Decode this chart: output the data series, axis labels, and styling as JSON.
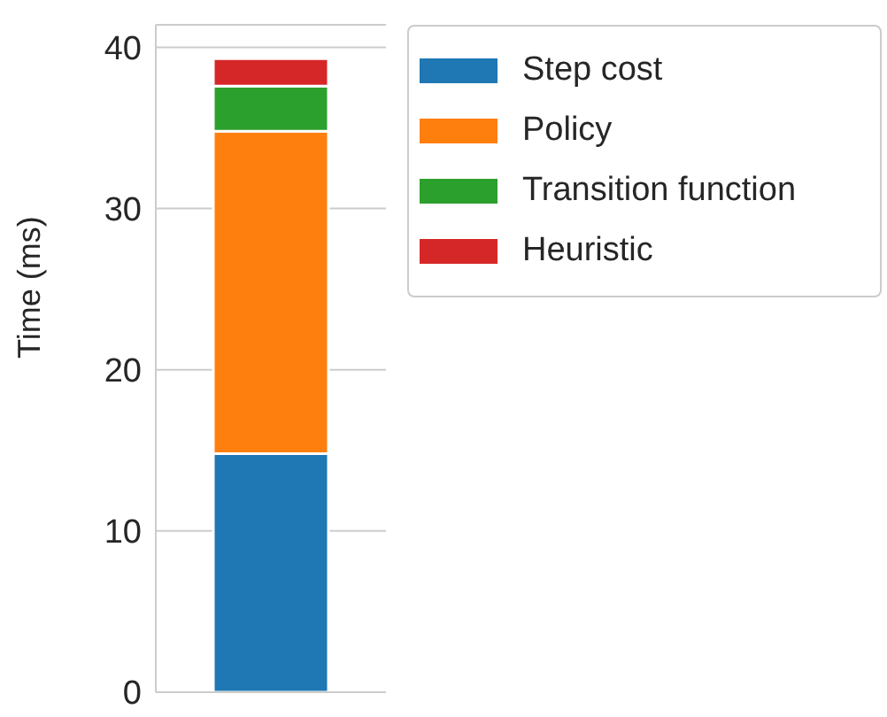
{
  "chart_data": {
    "type": "bar",
    "stacked": true,
    "categories": [
      null
    ],
    "ylabel": "Time (ms)",
    "ylim": [
      0,
      41.4
    ],
    "yticks": [
      0,
      10,
      20,
      30,
      40
    ],
    "grid": "y",
    "legend": "top right",
    "series": [
      {
        "name": "Step cost",
        "color": "#1f77b4",
        "values": [
          14.8
        ]
      },
      {
        "name": "Policy",
        "color": "#ff7f0e",
        "values": [
          20.0
        ]
      },
      {
        "name": "Transition function",
        "color": "#2ca02c",
        "values": [
          2.8
        ]
      },
      {
        "name": "Heuristic",
        "color": "#d62728",
        "values": [
          1.7
        ]
      }
    ]
  }
}
